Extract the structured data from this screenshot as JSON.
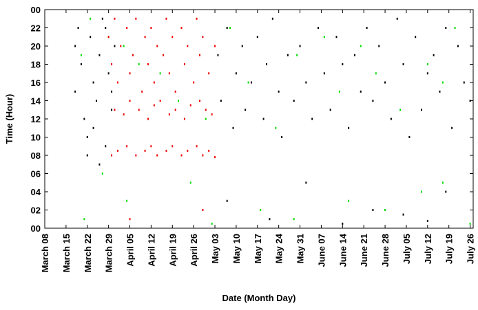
{
  "chart_data": {
    "type": "scatter",
    "x_label": "Date (Month Day)",
    "y_label": "Time (Hour)",
    "xlim": [
      0,
      141
    ],
    "ylim": [
      0,
      24
    ],
    "xticks": [
      {
        "value": 0,
        "label": "March 08"
      },
      {
        "value": 7,
        "label": "March 15"
      },
      {
        "value": 14,
        "label": "March 22"
      },
      {
        "value": 21,
        "label": "March 29"
      },
      {
        "value": 28,
        "label": "April 05"
      },
      {
        "value": 35,
        "label": "April 12"
      },
      {
        "value": 42,
        "label": "April 19"
      },
      {
        "value": 49,
        "label": "April 26"
      },
      {
        "value": 56,
        "label": "May 03"
      },
      {
        "value": 63,
        "label": "May 10"
      },
      {
        "value": 70,
        "label": "May 17"
      },
      {
        "value": 77,
        "label": "May 24"
      },
      {
        "value": 84,
        "label": "May 31"
      },
      {
        "value": 91,
        "label": "June 07"
      },
      {
        "value": 98,
        "label": "June 14"
      },
      {
        "value": 105,
        "label": "June 21"
      },
      {
        "value": 112,
        "label": "June 28"
      },
      {
        "value": 119,
        "label": "July 05"
      },
      {
        "value": 126,
        "label": "July 12"
      },
      {
        "value": 133,
        "label": "July 19"
      },
      {
        "value": 140,
        "label": "July 26"
      }
    ],
    "yticks": [
      {
        "value": 0,
        "label": "00"
      },
      {
        "value": 2,
        "label": "02"
      },
      {
        "value": 4,
        "label": "04"
      },
      {
        "value": 6,
        "label": "06"
      },
      {
        "value": 8,
        "label": "08"
      },
      10,
      12,
      14,
      16,
      18,
      20,
      22,
      {
        "value": 24,
        "label": "00"
      }
    ],
    "series": [
      {
        "color": "#000000",
        "x": [
          10,
          10,
          11,
          12,
          13,
          14,
          15,
          16,
          17,
          18,
          19,
          20,
          21,
          22,
          23,
          14,
          16,
          18,
          20,
          22,
          57,
          58,
          60,
          62,
          63,
          65,
          66,
          68,
          70,
          72,
          73,
          75,
          77,
          78,
          80,
          82,
          84,
          86,
          88,
          90,
          92,
          94,
          96,
          98,
          100,
          102,
          104,
          106,
          108,
          110,
          112,
          114,
          116,
          118,
          120,
          122,
          124,
          126,
          128,
          130,
          132,
          134,
          136,
          138,
          140,
          60,
          74,
          86,
          98,
          108,
          118,
          126,
          132
        ],
        "values": [
          20,
          15,
          22,
          18,
          12,
          10,
          21,
          16,
          14,
          19,
          23,
          9,
          17,
          13,
          20,
          8,
          11,
          7,
          22,
          15,
          19,
          14,
          22,
          11,
          17,
          20,
          13,
          16,
          21,
          12,
          18,
          23,
          15,
          10,
          19,
          14,
          20,
          16,
          12,
          22,
          17,
          13,
          21,
          18,
          11,
          19,
          15,
          22,
          14,
          20,
          16,
          12,
          23,
          18,
          10,
          21,
          13,
          17,
          19,
          15,
          22,
          11,
          20,
          16,
          14,
          3,
          1,
          5,
          0.5,
          2,
          1.5,
          0.8,
          4
        ]
      },
      {
        "color": "#00dd00",
        "x": [
          12,
          15,
          21,
          26,
          31,
          38,
          44,
          53,
          61,
          67,
          76,
          83,
          92,
          97,
          104,
          109,
          117,
          126,
          131,
          135,
          13,
          19,
          27,
          48,
          55,
          71,
          82,
          100,
          112,
          124,
          131,
          140
        ],
        "values": [
          19,
          23,
          21,
          20,
          18,
          17,
          14,
          12,
          22,
          16,
          11,
          19,
          21,
          15,
          20,
          17,
          13,
          18,
          16,
          22,
          1,
          6,
          3,
          5,
          0.5,
          2,
          1,
          3,
          2,
          4,
          5,
          0.5
        ]
      },
      {
        "color": "#ee0000",
        "x": [
          21,
          22,
          23,
          24,
          25,
          27,
          28,
          29,
          30,
          32,
          33,
          34,
          35,
          36,
          37,
          39,
          40,
          41,
          42,
          43,
          45,
          46,
          47,
          49,
          50,
          51,
          52,
          54,
          56,
          22,
          24,
          27,
          30,
          33,
          35,
          37,
          40,
          42,
          45,
          47,
          50,
          52,
          54,
          56,
          23,
          26,
          28,
          31,
          34,
          36,
          38,
          41,
          43,
          46,
          48,
          51,
          53,
          55,
          28,
          52
        ],
        "values": [
          21,
          18,
          23,
          16,
          20,
          22,
          17,
          19,
          23,
          15,
          21,
          18,
          22,
          16,
          20,
          19,
          23,
          17,
          21,
          15,
          22,
          18,
          20,
          16,
          23,
          19,
          21,
          17,
          20,
          8,
          8.5,
          9,
          8,
          8.5,
          9,
          8,
          8.5,
          9,
          8,
          8.5,
          9,
          8,
          8.5,
          7.8,
          13,
          12.5,
          14,
          13,
          12,
          13.5,
          14,
          12.5,
          13,
          12,
          13.5,
          14,
          13,
          12.5,
          1,
          2
        ]
      }
    ]
  }
}
